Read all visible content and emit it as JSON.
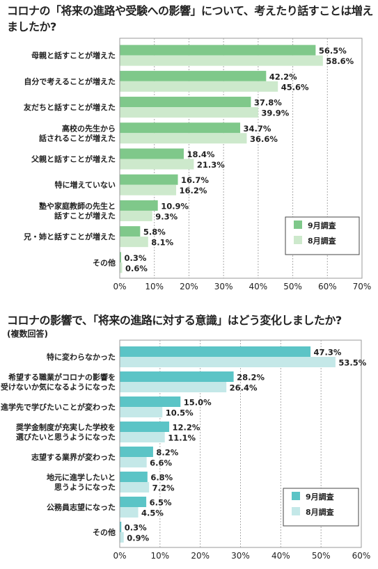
{
  "chart_data": [
    {
      "type": "bar",
      "orientation": "horizontal",
      "title": "コロナの「将来の進路や受験への影響」について、考えたり話すことは増えましたか?",
      "categories": [
        [
          "母親と話すことが増えた"
        ],
        [
          "自分で考えることが増えた"
        ],
        [
          "友だちと話すことが増えた"
        ],
        [
          "高校の先生から",
          "話されることが増えた"
        ],
        [
          "父親と話すことが増えた"
        ],
        [
          "特に増えていない"
        ],
        [
          "塾や家庭教師の先生と",
          "話すことが増えた"
        ],
        [
          "兄・姉と話すことが増えた"
        ],
        [
          "その他"
        ]
      ],
      "series": [
        {
          "name": "9月調査",
          "color": "#7fc88a",
          "values": [
            56.5,
            42.2,
            37.8,
            34.7,
            18.4,
            16.7,
            10.9,
            5.8,
            0.3
          ]
        },
        {
          "name": "8月調査",
          "color": "#cde9cc",
          "values": [
            58.6,
            45.6,
            39.9,
            36.6,
            21.3,
            16.2,
            9.3,
            8.1,
            0.6
          ]
        }
      ],
      "xlim": [
        0,
        70
      ],
      "ticks": [
        0,
        10,
        20,
        30,
        40,
        50,
        60,
        70
      ],
      "unit": "%",
      "grid": true,
      "legend_position": "bottom-right"
    },
    {
      "type": "bar",
      "orientation": "horizontal",
      "title": "コロナの影響で、「将来の進路に対する意識」はどう変化しましたか?",
      "subtitle": "(複数回答)",
      "categories": [
        [
          "特に変わらなかった"
        ],
        [
          "希望する職業がコロナの影響を",
          "受けないか気になるようになった"
        ],
        [
          "進学先で学びたいことが変わった"
        ],
        [
          "奨学金制度が充実した学校を",
          "選びたいと思うようになった"
        ],
        [
          "志望する業界が変わった"
        ],
        [
          "地元に進学したいと",
          "思うようになった"
        ],
        [
          "公務員志望になった"
        ],
        [
          "その他"
        ]
      ],
      "series": [
        {
          "name": "9月調査",
          "color": "#5bc4c6",
          "values": [
            47.3,
            28.2,
            15.0,
            12.2,
            8.2,
            6.8,
            6.5,
            0.3
          ]
        },
        {
          "name": "8月調査",
          "color": "#c4e8e8",
          "values": [
            53.5,
            26.4,
            10.5,
            11.1,
            6.6,
            7.2,
            4.5,
            0.9
          ]
        }
      ],
      "xlim": [
        0,
        60
      ],
      "ticks": [
        0,
        10,
        20,
        30,
        40,
        50,
        60
      ],
      "unit": "%",
      "grid": true,
      "legend_position": "bottom-right"
    }
  ]
}
